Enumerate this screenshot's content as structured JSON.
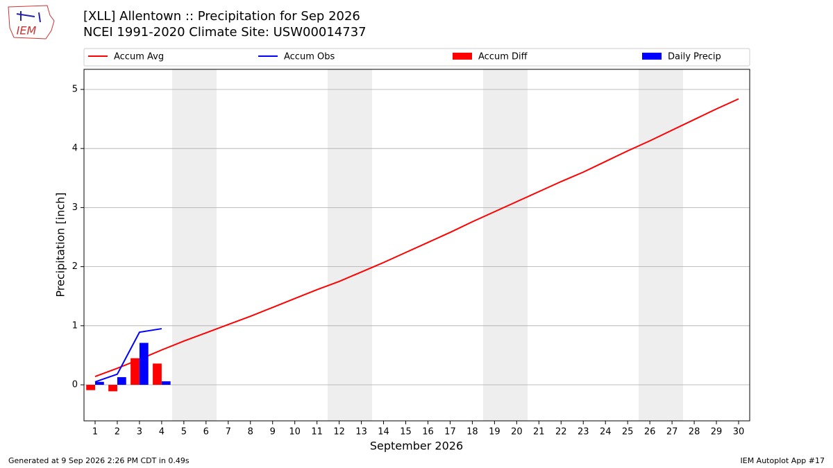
{
  "logo_text": "IEM",
  "footer_left": "Generated at 9 Sep 2026 2:26 PM CDT in 0.49s",
  "footer_right": "IEM Autoplot App #17",
  "chart_data": {
    "type": "line",
    "title": "[XLL] Allentown :: Precipitation for Sep 2026",
    "subtitle": "NCEI 1991-2020 Climate Site: USW00014737",
    "xlabel": "September 2026",
    "ylabel": "Precipitation [inch]",
    "x": [
      1,
      2,
      3,
      4,
      5,
      6,
      7,
      8,
      9,
      10,
      11,
      12,
      13,
      14,
      15,
      16,
      17,
      18,
      19,
      20,
      21,
      22,
      23,
      24,
      25,
      26,
      27,
      28,
      29,
      30
    ],
    "xlim": [
      0.5,
      30.5
    ],
    "xticks": [
      1,
      2,
      3,
      4,
      5,
      6,
      7,
      8,
      9,
      10,
      11,
      12,
      13,
      14,
      15,
      16,
      17,
      18,
      19,
      20,
      21,
      22,
      23,
      24,
      25,
      26,
      27,
      28,
      29,
      30
    ],
    "ylim": [
      -0.61,
      5.34
    ],
    "yticks": [
      0,
      1,
      2,
      3,
      4,
      5
    ],
    "grid": true,
    "series": [
      {
        "name": "Accum Avg",
        "type": "line",
        "color": "#ff0000",
        "values": [
          0.14,
          0.28,
          0.43,
          0.59,
          0.74,
          0.88,
          1.02,
          1.16,
          1.31,
          1.46,
          1.61,
          1.75,
          1.91,
          2.07,
          2.24,
          2.41,
          2.58,
          2.76,
          2.93,
          3.1,
          3.27,
          3.44,
          3.6,
          3.78,
          3.96,
          4.13,
          4.31,
          4.49,
          4.67,
          4.84
        ]
      },
      {
        "name": "Accum Obs",
        "type": "line",
        "color": "#0000ff",
        "values": [
          0.05,
          0.18,
          0.89,
          0.95,
          null,
          null,
          null,
          null,
          null,
          null,
          null,
          null,
          null,
          null,
          null,
          null,
          null,
          null,
          null,
          null,
          null,
          null,
          null,
          null,
          null,
          null,
          null,
          null,
          null,
          null
        ]
      },
      {
        "name": "Accum Diff",
        "type": "bar",
        "color": "#ff0000",
        "values": [
          -0.09,
          -0.11,
          0.45,
          0.36,
          null,
          null,
          null,
          null,
          null,
          null,
          null,
          null,
          null,
          null,
          null,
          null,
          null,
          null,
          null,
          null,
          null,
          null,
          null,
          null,
          null,
          null,
          null,
          null,
          null,
          null
        ]
      },
      {
        "name": "Daily Precip",
        "type": "bar",
        "color": "#0000ff",
        "values": [
          0.05,
          0.13,
          0.71,
          0.06,
          null,
          null,
          null,
          null,
          null,
          null,
          null,
          null,
          null,
          null,
          null,
          null,
          null,
          null,
          null,
          null,
          null,
          null,
          null,
          null,
          null,
          null,
          null,
          null,
          null,
          null
        ]
      }
    ]
  }
}
